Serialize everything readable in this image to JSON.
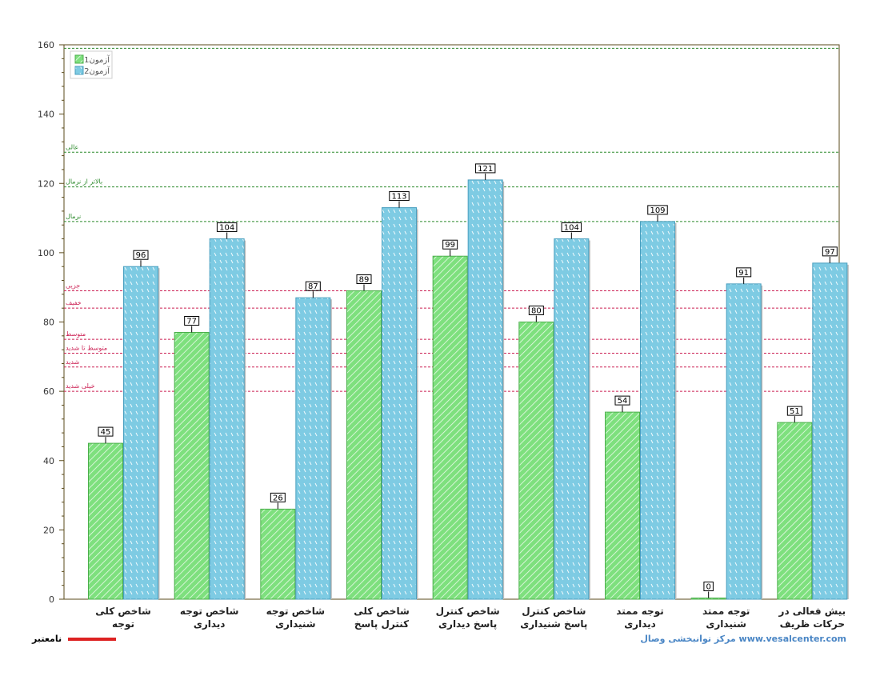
{
  "chart_data": {
    "type": "bar",
    "title": "",
    "xlabel": "",
    "ylabel": "",
    "ylim": [
      0,
      160
    ],
    "yticks": [
      0,
      20,
      40,
      60,
      80,
      100,
      120,
      140,
      160
    ],
    "grid": false,
    "legend_position": "top-left",
    "categories": [
      [
        "شاخص کلی",
        "توجه"
      ],
      [
        "شاخص توجه",
        "دیداری"
      ],
      [
        "شاخص توجه",
        "شنیداری"
      ],
      [
        "شاخص کلی",
        "کنترل پاسخ"
      ],
      [
        "شاخص کنترل",
        "پاسخ  دیداری"
      ],
      [
        "شاخص کنترل",
        "پاسخ  شنیداری"
      ],
      [
        "توجه ممتد",
        "دیداری"
      ],
      [
        "توجه ممتد",
        "شنیداری"
      ],
      [
        "بیش فعالی در",
        "حرکات ظریف"
      ]
    ],
    "series": [
      {
        "name": "آزمون1",
        "color": "#7ee07e",
        "values": [
          45,
          77,
          26,
          89,
          99,
          80,
          54,
          0,
          51
        ]
      },
      {
        "name": "آزمون2",
        "color": "#7ecbe3",
        "values": [
          96,
          104,
          87,
          113,
          121,
          104,
          109,
          91,
          97
        ]
      }
    ],
    "reference_lines": [
      {
        "label": "عالی",
        "value": 129,
        "color": "#2e8b2e"
      },
      {
        "label": "بالاتر از نرمال",
        "value": 119,
        "color": "#2e8b2e"
      },
      {
        "label": "نرمال",
        "value": 109,
        "color": "#2e8b2e"
      },
      {
        "label": "جزیی",
        "value": 89,
        "color": "#cc2255"
      },
      {
        "label": "خفیف",
        "value": 84,
        "color": "#cc2255"
      },
      {
        "label": "متوسط",
        "value": 75,
        "color": "#cc2255"
      },
      {
        "label": "متوسط تا شدید",
        "value": 71,
        "color": "#cc2255"
      },
      {
        "label": "شدید",
        "value": 67,
        "color": "#cc2255"
      },
      {
        "label": "خیلی شدید",
        "value": 60,
        "color": "#cc2255"
      }
    ],
    "top_line": {
      "value": 159,
      "color": "#2e8b2e"
    }
  },
  "footer": {
    "invalid_label": "نامعتبر",
    "invalid_color": "#dd2222",
    "brand": "مرکز توانبخشی وصال www.vesalcenter.com"
  }
}
